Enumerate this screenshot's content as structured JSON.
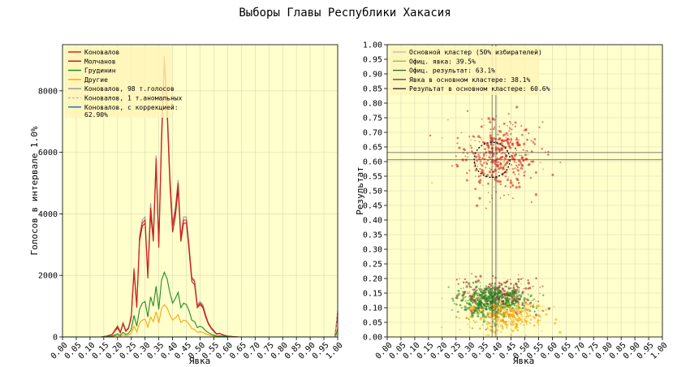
{
  "title": "Выборы Главы Республики Хакасия",
  "colors": {
    "plot_bg": "#ffffcc",
    "konovalov": "#d62020",
    "molchanov": "#b22222",
    "grudinin": "#228b22",
    "others": "#ffa500",
    "konovalov98": "#999999",
    "konovalov_anom": "#bbbbbb",
    "konovalov_corr": "#1f77b4",
    "ellipse": "#000000",
    "crosshair": "#555555"
  },
  "chart_data": [
    {
      "type": "line",
      "xlabel": "Явка",
      "ylabel": "Голосов в интервале 1.0%",
      "xlim": [
        0,
        1
      ],
      "ylim": [
        0,
        9500
      ],
      "x_ticks": [
        "0.00",
        "0.05",
        "0.10",
        "0.15",
        "0.20",
        "0.25",
        "0.30",
        "0.35",
        "0.40",
        "0.45",
        "0.50",
        "0.55",
        "0.60",
        "0.65",
        "0.70",
        "0.75",
        "0.80",
        "0.85",
        "0.90",
        "0.95",
        "1.00"
      ],
      "y_ticks": [
        "0",
        "2000",
        "4000",
        "6000",
        "8000"
      ],
      "y_tick_values": [
        0,
        2000,
        4000,
        6000,
        8000
      ],
      "grid": true,
      "legend_position": "top-left",
      "x": [
        0.0,
        0.1,
        0.14,
        0.16,
        0.18,
        0.2,
        0.21,
        0.22,
        0.23,
        0.24,
        0.25,
        0.26,
        0.27,
        0.28,
        0.29,
        0.3,
        0.31,
        0.32,
        0.33,
        0.34,
        0.35,
        0.36,
        0.37,
        0.38,
        0.39,
        0.4,
        0.41,
        0.42,
        0.43,
        0.44,
        0.45,
        0.46,
        0.47,
        0.48,
        0.49,
        0.5,
        0.51,
        0.52,
        0.53,
        0.54,
        0.55,
        0.56,
        0.57,
        0.58,
        0.59,
        0.6,
        0.61,
        0.62,
        0.63,
        0.64,
        0.65,
        0.66,
        0.7,
        0.8,
        0.9,
        0.98,
        0.99,
        1.0
      ],
      "series": [
        {
          "name": "Коновалов",
          "color": "#d62020",
          "values": [
            0,
            0,
            0,
            30,
            80,
            350,
            150,
            450,
            200,
            300,
            700,
            2200,
            1000,
            3200,
            3700,
            3800,
            2000,
            4200,
            3200,
            5800,
            3000,
            6500,
            9100,
            7500,
            5200,
            3600,
            4100,
            5000,
            3200,
            3800,
            3800,
            2900,
            1900,
            1800,
            1000,
            1100,
            1000,
            700,
            450,
            300,
            200,
            100,
            120,
            80,
            50,
            30,
            20,
            10,
            5,
            0,
            0,
            0,
            0,
            0,
            0,
            0,
            0,
            800
          ]
        },
        {
          "name": "Молчанов",
          "color": "#b22222",
          "values": [
            0,
            0,
            0,
            25,
            70,
            300,
            130,
            420,
            180,
            280,
            650,
            2100,
            950,
            3100,
            3600,
            3700,
            1900,
            4000,
            3100,
            5600,
            2900,
            6300,
            8900,
            7300,
            5000,
            3400,
            3900,
            4800,
            3100,
            3700,
            3700,
            2800,
            1800,
            1700,
            950,
            1050,
            950,
            650,
            420,
            280,
            180,
            90,
            110,
            70,
            45,
            28,
            18,
            8,
            4,
            0,
            0,
            0,
            0,
            0,
            0,
            0,
            0,
            750
          ]
        },
        {
          "name": "Грудинин",
          "color": "#228b22",
          "values": [
            0,
            0,
            0,
            10,
            30,
            100,
            50,
            150,
            80,
            120,
            250,
            700,
            350,
            900,
            1100,
            1150,
            650,
            1300,
            1000,
            1650,
            900,
            1850,
            2100,
            1900,
            1450,
            1100,
            1250,
            1450,
            950,
            1100,
            1050,
            850,
            550,
            500,
            300,
            350,
            300,
            200,
            140,
            90,
            60,
            30,
            35,
            25,
            15,
            10,
            6,
            3,
            1,
            0,
            0,
            0,
            0,
            0,
            0,
            0,
            0,
            250
          ]
        },
        {
          "name": "Другие",
          "color": "#ffa500",
          "values": [
            0,
            0,
            0,
            5,
            15,
            50,
            25,
            70,
            35,
            55,
            120,
            350,
            170,
            450,
            550,
            580,
            320,
            650,
            500,
            820,
            450,
            920,
            1050,
            950,
            720,
            550,
            620,
            720,
            470,
            550,
            520,
            420,
            270,
            250,
            150,
            170,
            150,
            100,
            70,
            45,
            30,
            15,
            18,
            12,
            8,
            5,
            3,
            1,
            0,
            0,
            0,
            0,
            0,
            0,
            0,
            0,
            0,
            120
          ]
        },
        {
          "name": "Коновалов, 98 т.голосов",
          "color": "#999999",
          "values": [
            0,
            0,
            0,
            30,
            85,
            360,
            160,
            460,
            210,
            310,
            720,
            2250,
            1050,
            3300,
            3800,
            3900,
            2050,
            4350,
            3300,
            5900,
            3100,
            6600,
            9150,
            7600,
            5300,
            3700,
            4200,
            5100,
            3300,
            3900,
            3900,
            3000,
            1950,
            1850,
            1050,
            1150,
            1050,
            720,
            460,
            310,
            210,
            105,
            125,
            85,
            55,
            32,
            22,
            11,
            5,
            0,
            0,
            0,
            0,
            0,
            0,
            0,
            0,
            820
          ]
        },
        {
          "name": "Коновалов, 1 т.аномальных",
          "color": "#bbbbbb",
          "values": [
            0,
            0,
            0,
            0,
            0,
            0,
            0,
            0,
            0,
            0,
            0,
            0,
            0,
            0,
            0,
            0,
            0,
            0,
            0,
            0,
            0,
            0,
            0,
            0,
            0,
            0,
            0,
            0,
            0,
            0,
            0,
            0,
            0,
            0,
            0,
            0,
            0,
            0,
            0,
            0,
            0,
            0,
            0,
            0,
            0,
            0,
            0,
            0,
            0,
            0,
            0,
            0,
            0,
            0,
            0,
            0,
            0,
            900
          ]
        },
        {
          "name": "Коновалов, с коррекцией: 62.90%",
          "color": "#1f77b4",
          "values": [
            0,
            0,
            0,
            0,
            0,
            0,
            0,
            0,
            0,
            0,
            0,
            0,
            0,
            0,
            0,
            0,
            0,
            0,
            0,
            0,
            0,
            0,
            0,
            0,
            0,
            0,
            0,
            0,
            0,
            0,
            0,
            0,
            0,
            0,
            0,
            0,
            0,
            0,
            0,
            0,
            0,
            0,
            0,
            0,
            0,
            0,
            0,
            0,
            0,
            0,
            0,
            0,
            0,
            0,
            0,
            0,
            0,
            0
          ]
        }
      ]
    },
    {
      "type": "scatter",
      "xlabel": "Явка",
      "ylabel": "Результат",
      "xlim": [
        0,
        1
      ],
      "ylim": [
        0,
        1
      ],
      "x_ticks": [
        "0.00",
        "0.05",
        "0.10",
        "0.15",
        "0.20",
        "0.25",
        "0.30",
        "0.35",
        "0.40",
        "0.45",
        "0.50",
        "0.55",
        "0.60",
        "0.65",
        "0.70",
        "0.75",
        "0.80",
        "0.85",
        "0.90",
        "0.95",
        "1.00"
      ],
      "y_ticks": [
        "0.00",
        "0.05",
        "0.10",
        "0.15",
        "0.20",
        "0.25",
        "0.30",
        "0.35",
        "0.40",
        "0.45",
        "0.50",
        "0.55",
        "0.60",
        "0.65",
        "0.70",
        "0.75",
        "0.80",
        "0.85",
        "0.90",
        "0.95",
        "1.00"
      ],
      "grid": true,
      "legend_position": "top-left",
      "legend": [
        "Основной кластер (50% избирателей)",
        "Офиц. явка: 39.5%",
        "Офиц. результат: 63.1%",
        "Явка в основном кластере: 38.1%",
        "Результат в основном кластере: 60.6%"
      ],
      "official_turnout": 0.395,
      "official_result": 0.631,
      "cluster_turnout": 0.381,
      "cluster_result": 0.606,
      "ellipse": {
        "cx": 0.381,
        "cy": 0.606,
        "rx": 0.065,
        "ry": 0.06
      },
      "clusters": [
        {
          "name": "Коновалов",
          "color": "#d62020",
          "turnout_mean": 0.4,
          "turnout_sd": 0.07,
          "result_mean": 0.62,
          "result_sd": 0.06,
          "count": 420
        },
        {
          "name": "Молчанов",
          "color": "#b22222",
          "turnout_mean": 0.4,
          "turnout_sd": 0.07,
          "result_mean": 0.14,
          "result_sd": 0.03,
          "count": 260
        },
        {
          "name": "Грудинин",
          "color": "#228b22",
          "turnout_mean": 0.38,
          "turnout_sd": 0.06,
          "result_mean": 0.12,
          "result_sd": 0.03,
          "count": 500
        },
        {
          "name": "Другие",
          "color": "#ffa500",
          "turnout_mean": 0.43,
          "turnout_sd": 0.07,
          "result_mean": 0.07,
          "result_sd": 0.025,
          "count": 300
        }
      ]
    }
  ]
}
